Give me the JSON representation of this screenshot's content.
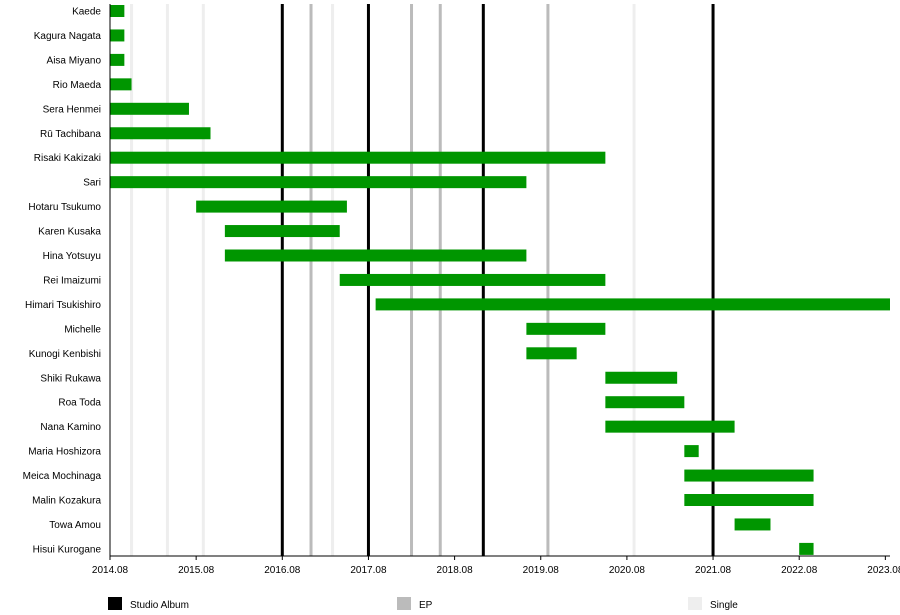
{
  "chart_data": {
    "type": "timeline",
    "x_axis": {
      "ticks": [
        "2014.08",
        "2015.08",
        "2016.08",
        "2017.08",
        "2018.08",
        "2019.08",
        "2020.08",
        "2021.08",
        "2022.08",
        "2023.08"
      ],
      "range": [
        "2014.08",
        "2023.10"
      ]
    },
    "members": [
      {
        "name": "Kaede",
        "start": "2014.08",
        "end": "2014.10"
      },
      {
        "name": "Kagura Nagata",
        "start": "2014.08",
        "end": "2014.10"
      },
      {
        "name": "Aisa Miyano",
        "start": "2014.08",
        "end": "2014.10"
      },
      {
        "name": "Rio Maeda",
        "start": "2014.08",
        "end": "2014.11"
      },
      {
        "name": "Sera Henmei",
        "start": "2014.08",
        "end": "2015.07"
      },
      {
        "name": "Rū Tachibana",
        "start": "2014.08",
        "end": "2015.10"
      },
      {
        "name": "Risaki Kakizaki",
        "start": "2014.08",
        "end": "2020.05"
      },
      {
        "name": "Sari",
        "start": "2014.08",
        "end": "2019.06"
      },
      {
        "name": "Hotaru Tsukumo",
        "start": "2015.08",
        "end": "2017.05"
      },
      {
        "name": "Karen Kusaka",
        "start": "2015.12",
        "end": "2017.04"
      },
      {
        "name": "Hina Yotsuyu",
        "start": "2015.12",
        "end": "2019.06"
      },
      {
        "name": "Rei Imaizumi",
        "start": "2017.04",
        "end": "2020.05"
      },
      {
        "name": "Himari Tsukishiro",
        "start": "2017.09",
        "end": "2023.10"
      },
      {
        "name": "Michelle",
        "start": "2019.06",
        "end": "2020.05"
      },
      {
        "name": "Kunogi Kenbishi",
        "start": "2019.06",
        "end": "2020.01"
      },
      {
        "name": "Shiki Rukawa",
        "start": "2020.05",
        "end": "2021.03"
      },
      {
        "name": "Roa Toda",
        "start": "2020.05",
        "end": "2021.04"
      },
      {
        "name": "Nana Kamino",
        "start": "2020.05",
        "end": "2021.11"
      },
      {
        "name": "Maria Hoshizora",
        "start": "2021.04",
        "end": "2021.06"
      },
      {
        "name": "Meica Mochinaga",
        "start": "2021.04",
        "end": "2022.10"
      },
      {
        "name": "Malin Kozakura",
        "start": "2021.04",
        "end": "2022.10"
      },
      {
        "name": "Towa Amou",
        "start": "2021.11",
        "end": "2022.04"
      },
      {
        "name": "Hisui Kurogane",
        "start": "2022.08",
        "end": "2022.10"
      }
    ],
    "releases": {
      "studio_album": [
        "2016.08",
        "2017.08",
        "2018.12",
        "2021.08"
      ],
      "ep": [
        "2016.12",
        "2018.02",
        "2018.06",
        "2019.09"
      ],
      "single": [
        "2014.11",
        "2015.04",
        "2015.09",
        "2017.03",
        "2020.09"
      ]
    },
    "legend": [
      {
        "key": "studio_album",
        "label": "Studio Album",
        "color": "#000000"
      },
      {
        "key": "ep",
        "label": "EP",
        "color": "#bbbbbb"
      },
      {
        "key": "single",
        "label": "Single",
        "color": "#eeeeee"
      }
    ],
    "bar_color": "#009600",
    "legend_position": "bottom"
  }
}
